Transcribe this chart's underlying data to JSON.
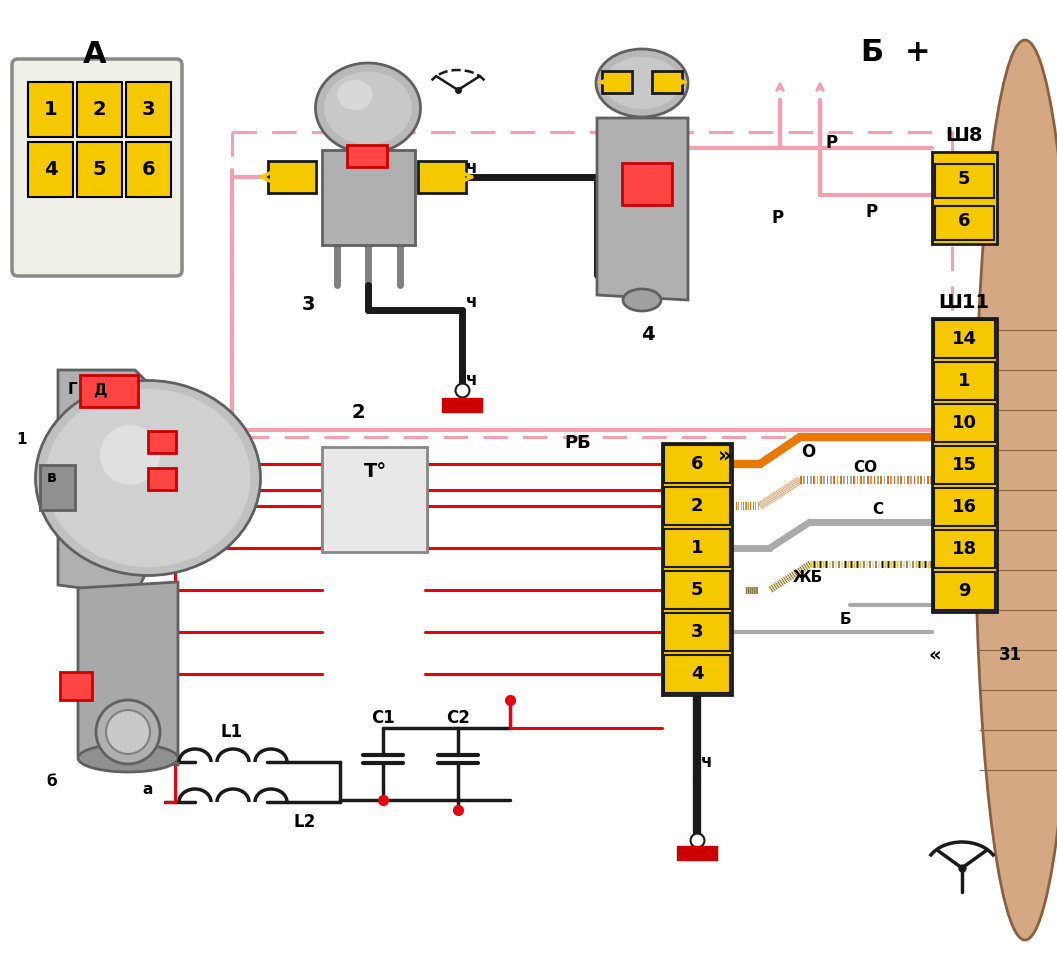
{
  "bg_color": "#ffffff",
  "connector_A_label": "А",
  "connector_A_cells": [
    "1",
    "2",
    "3",
    "4",
    "5",
    "6"
  ],
  "sh8_label": "Ш8",
  "sh8_cells": [
    "5",
    "6"
  ],
  "sh11_label": "Ш11",
  "sh11_cells": [
    "14",
    "1",
    "10",
    "15",
    "16",
    "18",
    "9"
  ],
  "relay_block_cells": [
    "6",
    "2",
    "1",
    "5",
    "3",
    "4"
  ],
  "wire_colors": {
    "black": "#1a1a1a",
    "red": "#e8000d",
    "pink": "#f4a0b0",
    "orange": "#e87800",
    "gray": "#aaaaaa",
    "ground_red": "#cc0000"
  },
  "yellow": "#f5c800",
  "figsize": [
    10.57,
    9.8
  ]
}
